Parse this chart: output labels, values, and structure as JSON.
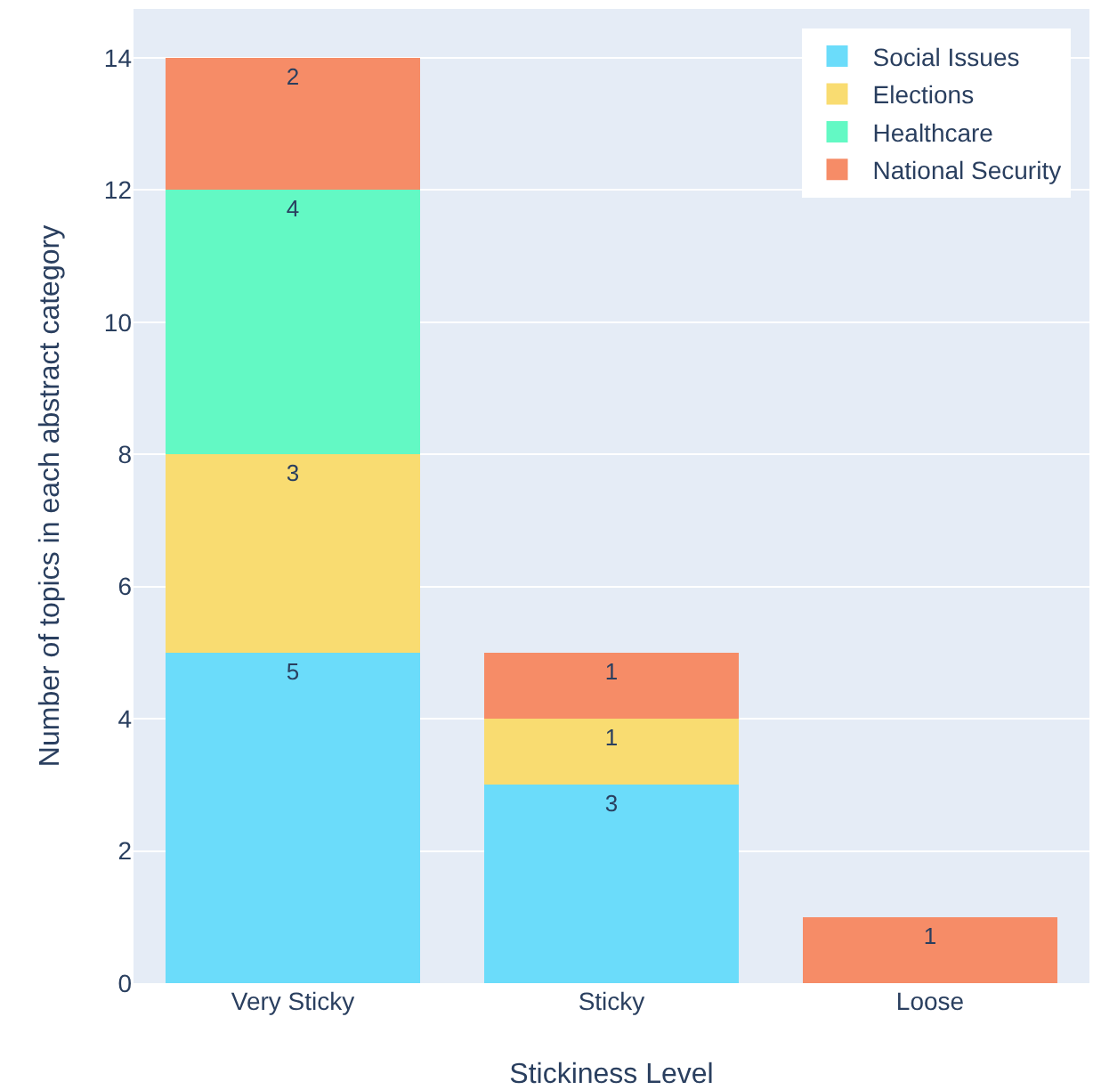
{
  "chart_data": {
    "type": "bar",
    "stacked": true,
    "xlabel": "Stickiness Level",
    "ylabel": "Number of topics in each abstract category",
    "categories": [
      "Very Sticky",
      "Sticky",
      "Loose"
    ],
    "series": [
      {
        "name": "Social Issues",
        "color": "#6bdcfa",
        "values": [
          5,
          3,
          null
        ]
      },
      {
        "name": "Elections",
        "color": "#f9dc71",
        "values": [
          3,
          1,
          null
        ]
      },
      {
        "name": "Healthcare",
        "color": "#63f9c4",
        "values": [
          4,
          null,
          null
        ]
      },
      {
        "name": "National Security",
        "color": "#f68c67",
        "values": [
          2,
          1,
          1
        ]
      }
    ],
    "ylim": [
      0,
      14.74
    ],
    "yticks": [
      0,
      2,
      4,
      6,
      8,
      10,
      12,
      14
    ],
    "grid": "y",
    "legend": "top right",
    "data_labels": true
  }
}
